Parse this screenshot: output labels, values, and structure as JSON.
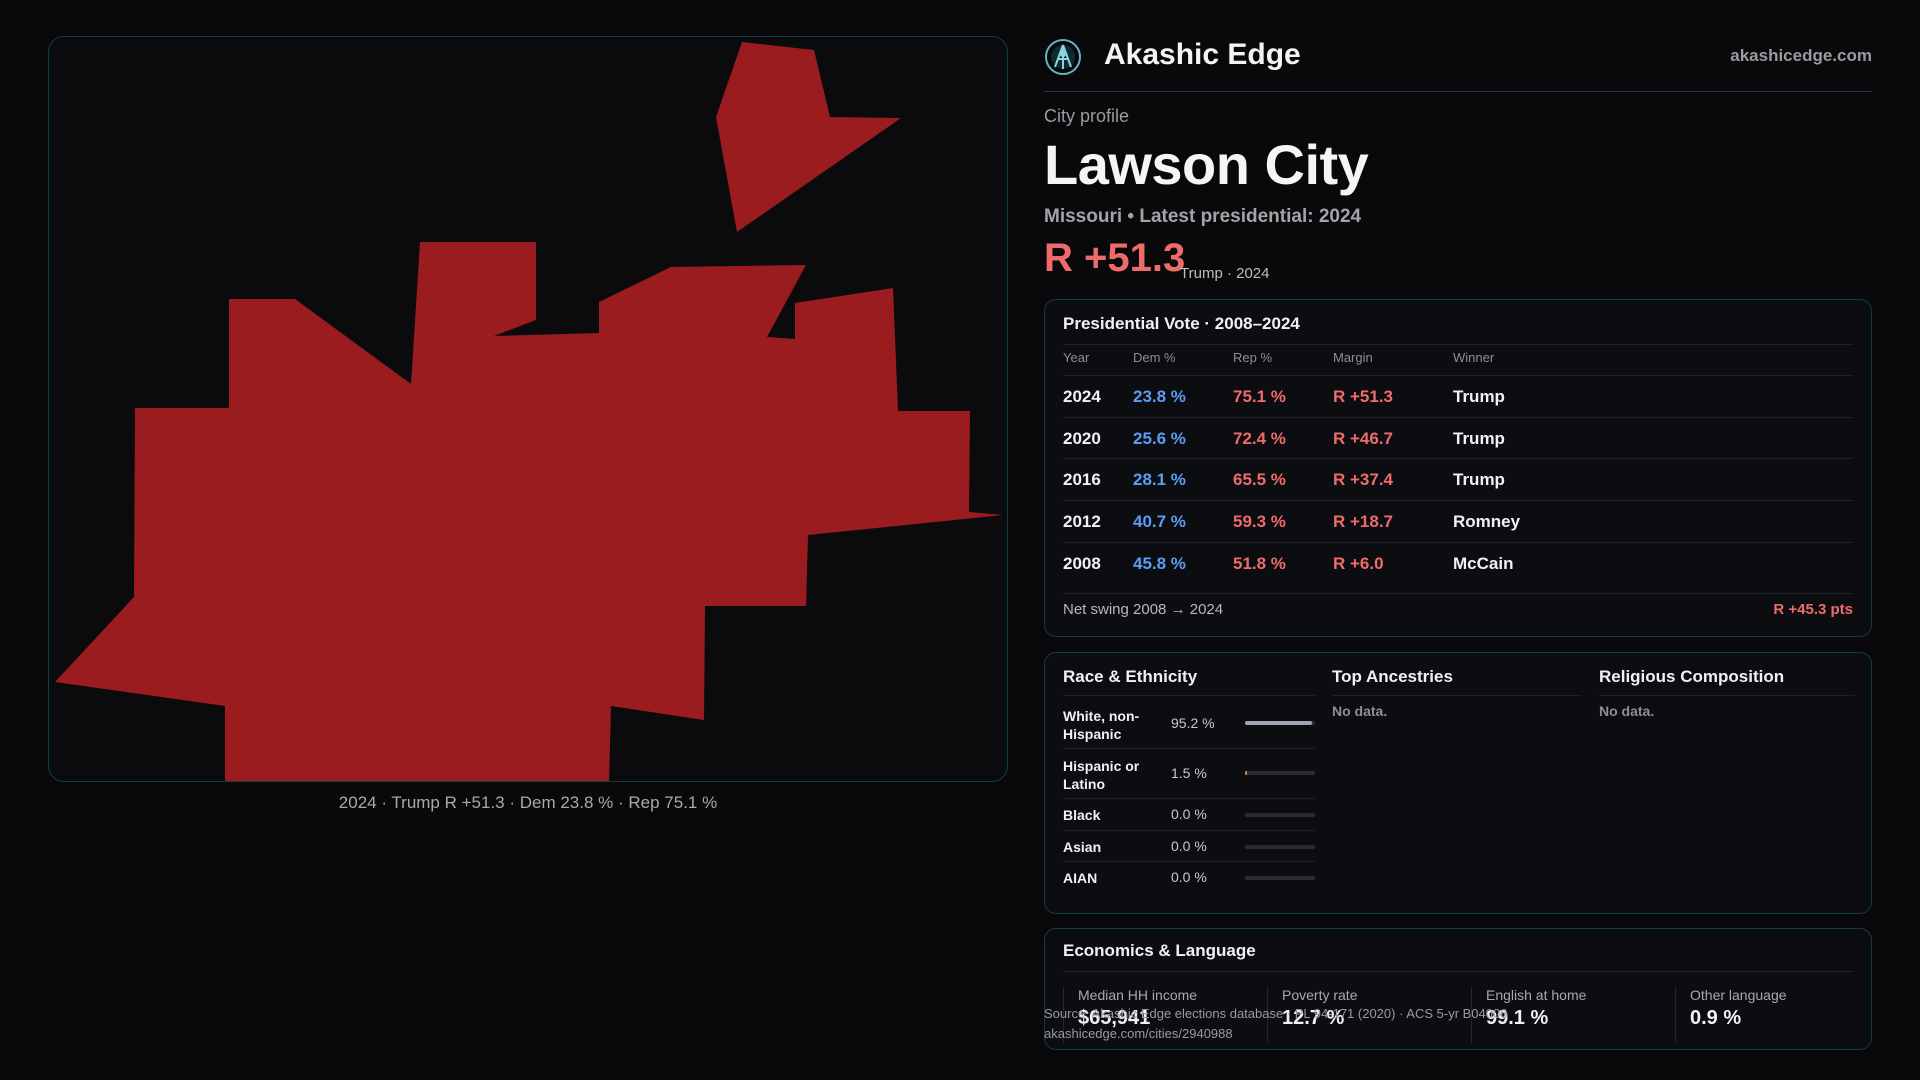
{
  "brand": {
    "name": "Akashic Edge",
    "url": "akashicedge.com",
    "logo_icon": "akashic-edge-logo-icon"
  },
  "colors": {
    "rep": "#ef6b6b",
    "dem": "#5b9cf5",
    "map_fill": "#9b1c1f",
    "accent_border": "#123d44",
    "hispanic_bar": "#d08a4a",
    "white_bar": "#9fa6b3"
  },
  "map": {
    "caption": "2024 · Trump R +51.3 · Dem 23.8 % · Rep 75.1 %"
  },
  "profile": {
    "kicker": "City profile",
    "city": "Lawson City",
    "subline": "Missouri • Latest presidential: 2024",
    "margin": "R +51.3",
    "margin_note": "Trump · 2024"
  },
  "vote": {
    "title": "Presidential Vote · 2008–2024",
    "headers": {
      "year": "Year",
      "dem": "Dem %",
      "rep": "Rep %",
      "margin": "Margin",
      "winner": "Winner"
    },
    "rows": [
      {
        "year": "2024",
        "dem": "23.8 %",
        "rep": "75.1 %",
        "margin": "R +51.3",
        "winner": "Trump"
      },
      {
        "year": "2020",
        "dem": "25.6 %",
        "rep": "72.4 %",
        "margin": "R +46.7",
        "winner": "Trump"
      },
      {
        "year": "2016",
        "dem": "28.1 %",
        "rep": "65.5 %",
        "margin": "R +37.4",
        "winner": "Trump"
      },
      {
        "year": "2012",
        "dem": "40.7 %",
        "rep": "59.3 %",
        "margin": "R +18.7",
        "winner": "Romney"
      },
      {
        "year": "2008",
        "dem": "45.8 %",
        "rep": "51.8 %",
        "margin": "R +6.0",
        "winner": "McCain"
      }
    ],
    "swing_label": "Net swing 2008 → 2024",
    "swing_value": "R +45.3 pts"
  },
  "race": {
    "title": "Race & Ethnicity",
    "rows": [
      {
        "label": "White, non-Hispanic",
        "pct": "95.2 %",
        "share": 0.952
      },
      {
        "label": "Hispanic or Latino",
        "pct": "1.5 %",
        "share": 0.015
      },
      {
        "label": "Black",
        "pct": "0.0 %",
        "share": 0
      },
      {
        "label": "Asian",
        "pct": "0.0 %",
        "share": 0
      },
      {
        "label": "AIAN",
        "pct": "0.0 %",
        "share": 0
      }
    ]
  },
  "ancestries": {
    "title": "Top Ancestries",
    "empty": "No data."
  },
  "religion": {
    "title": "Religious Composition",
    "empty": "No data."
  },
  "economics": {
    "title": "Economics & Language",
    "items": [
      {
        "label": "Median HH income",
        "value": "$65,941"
      },
      {
        "label": "Poverty rate",
        "value": "12.7 %"
      },
      {
        "label": "English at home",
        "value": "99.1 %"
      },
      {
        "label": "Other language",
        "value": "0.9 %"
      }
    ]
  },
  "source": {
    "line1": "Source: Akashic Edge elections database · PL 94-171 (2020) · ACS 5-yr B04006",
    "line2": "akashicedge.com/cities/2940988"
  }
}
